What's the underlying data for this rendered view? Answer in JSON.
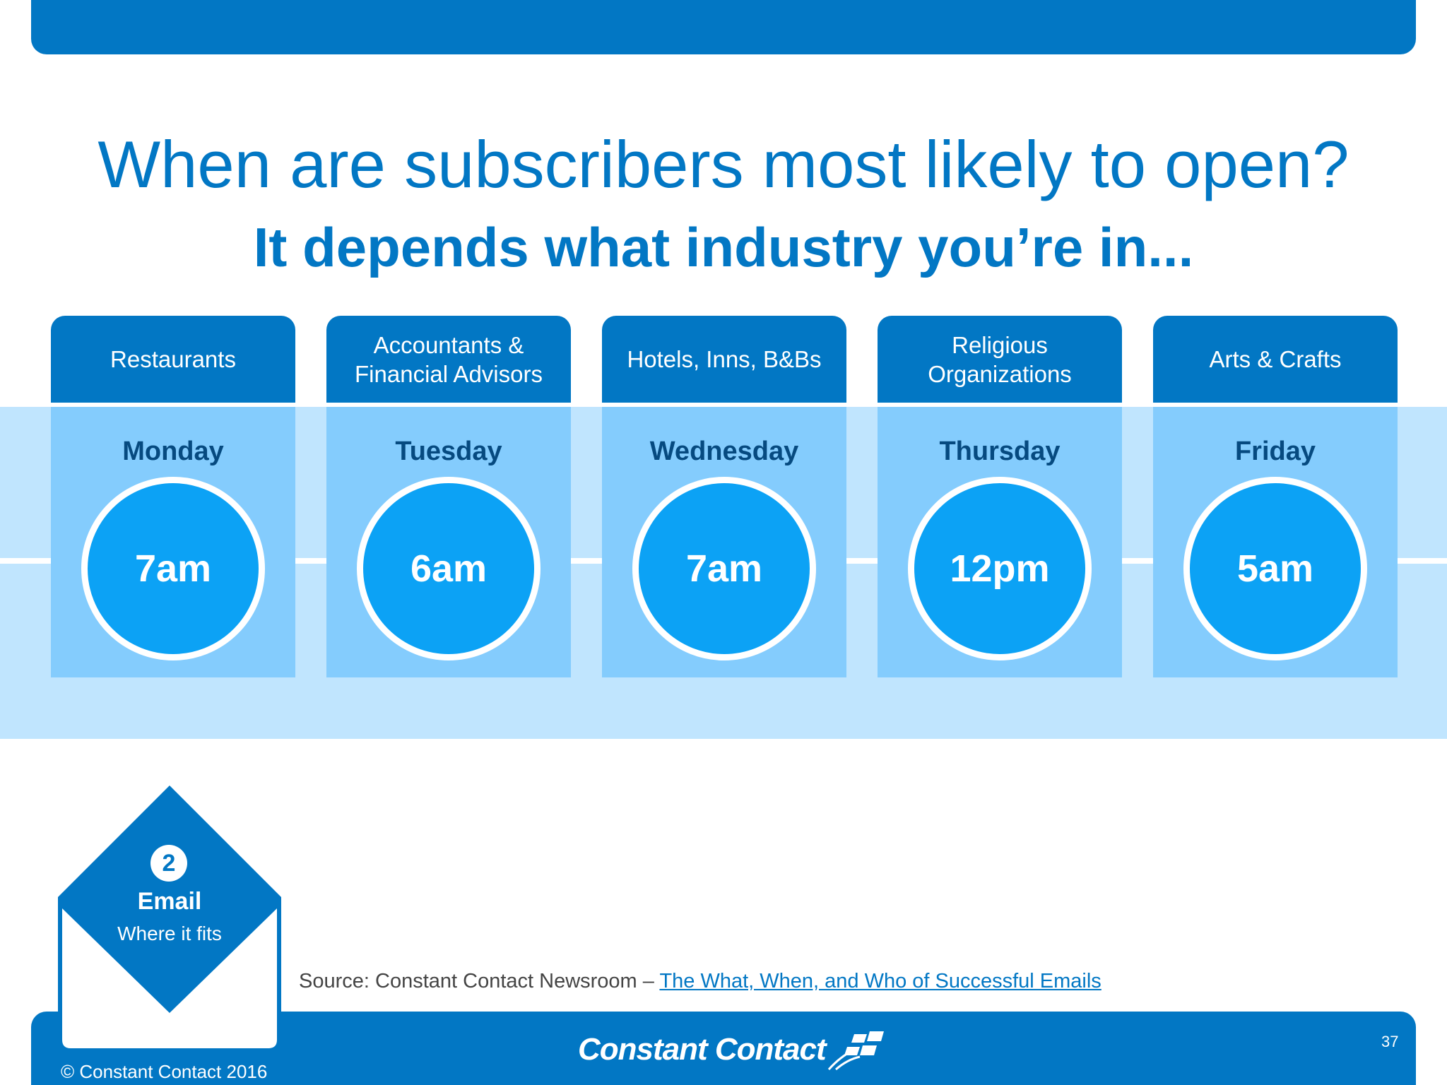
{
  "slide": {
    "title": "When are subscribers most likely to open?",
    "subtitle": "It depends what industry you’re in..."
  },
  "columns": [
    {
      "industry": "Restaurants",
      "day": "Monday",
      "time": "7am"
    },
    {
      "industry": "Accountants & Financial Advisors",
      "day": "Tuesday",
      "time": "6am"
    },
    {
      "industry": "Hotels, Inns, B&Bs",
      "day": "Wednesday",
      "time": "7am"
    },
    {
      "industry": "Religious Organizations",
      "day": "Thursday",
      "time": "12pm"
    },
    {
      "industry": "Arts & Crafts",
      "day": "Friday",
      "time": "5am"
    }
  ],
  "badge": {
    "number": "2",
    "title": "Email",
    "subtitle": "Where it fits"
  },
  "source": {
    "prefix": "Source: Constant Contact Newsroom – ",
    "link_text": "The What, When, and Who of Successful Emails"
  },
  "footer": {
    "logo_text": "Constant Contact",
    "page_number": "37",
    "copyright": "© Constant Contact 2016"
  },
  "colors": {
    "primary_blue": "#0277c4",
    "light_band": "#c0e5fe",
    "column_body": "#84ccfd",
    "circle_fill": "#0ca2f5",
    "day_text": "#064a80"
  }
}
